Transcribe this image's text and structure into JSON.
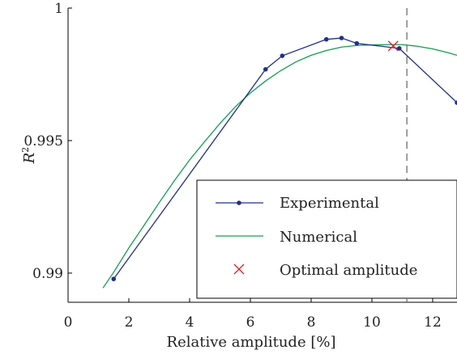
{
  "chart_data": {
    "type": "line",
    "xlabel": "Relative amplitude [%]",
    "ylabel_base": "R",
    "ylabel_sup": "2",
    "xlim": [
      0,
      12.8
    ],
    "ylim": [
      0.9889,
      1.0
    ],
    "xticks": [
      0,
      2,
      4,
      6,
      8,
      10,
      12
    ],
    "xtick_labels": [
      "0",
      "2",
      "4",
      "6",
      "8",
      "10",
      "12"
    ],
    "yticks": [
      0.99,
      0.995,
      1.0
    ],
    "ytick_labels": [
      "0.99",
      "0.995",
      "1"
    ],
    "grid": false,
    "legend_position": "bottom-right",
    "reference_line": {
      "x": 11.15,
      "style": "dashed",
      "color": "#6e6e6e"
    },
    "series": [
      {
        "name": "Experimental",
        "color": "#1f2f8f",
        "marker": "dot",
        "x": [
          1.5,
          6.5,
          7.05,
          8.5,
          9.0,
          9.5,
          10.9,
          12.8
        ],
        "y": [
          0.98978,
          0.99769,
          0.9982,
          0.99882,
          0.99887,
          0.99867,
          0.99848,
          0.99643
        ]
      },
      {
        "name": "Numerical",
        "color": "#10a050",
        "marker": "none",
        "x": [
          1.15,
          1.5,
          2,
          2.5,
          3,
          3.5,
          4,
          4.5,
          5,
          5.5,
          6,
          6.5,
          7,
          7.5,
          8,
          8.5,
          9,
          9.5,
          10,
          10.5,
          11,
          11.5,
          12,
          12.5,
          12.8
        ],
        "y": [
          0.98944,
          0.99003,
          0.99095,
          0.9918,
          0.99266,
          0.99349,
          0.99427,
          0.99497,
          0.99565,
          0.99627,
          0.9968,
          0.99725,
          0.99764,
          0.99797,
          0.99822,
          0.9984,
          0.99853,
          0.99859,
          0.99861,
          0.99862,
          0.99862,
          0.99856,
          0.99846,
          0.99832,
          0.99822
        ]
      },
      {
        "name": "Optimal amplitude",
        "color": "#e0202a",
        "marker": "x",
        "x": [
          10.7
        ],
        "y": [
          0.99857
        ]
      }
    ]
  }
}
